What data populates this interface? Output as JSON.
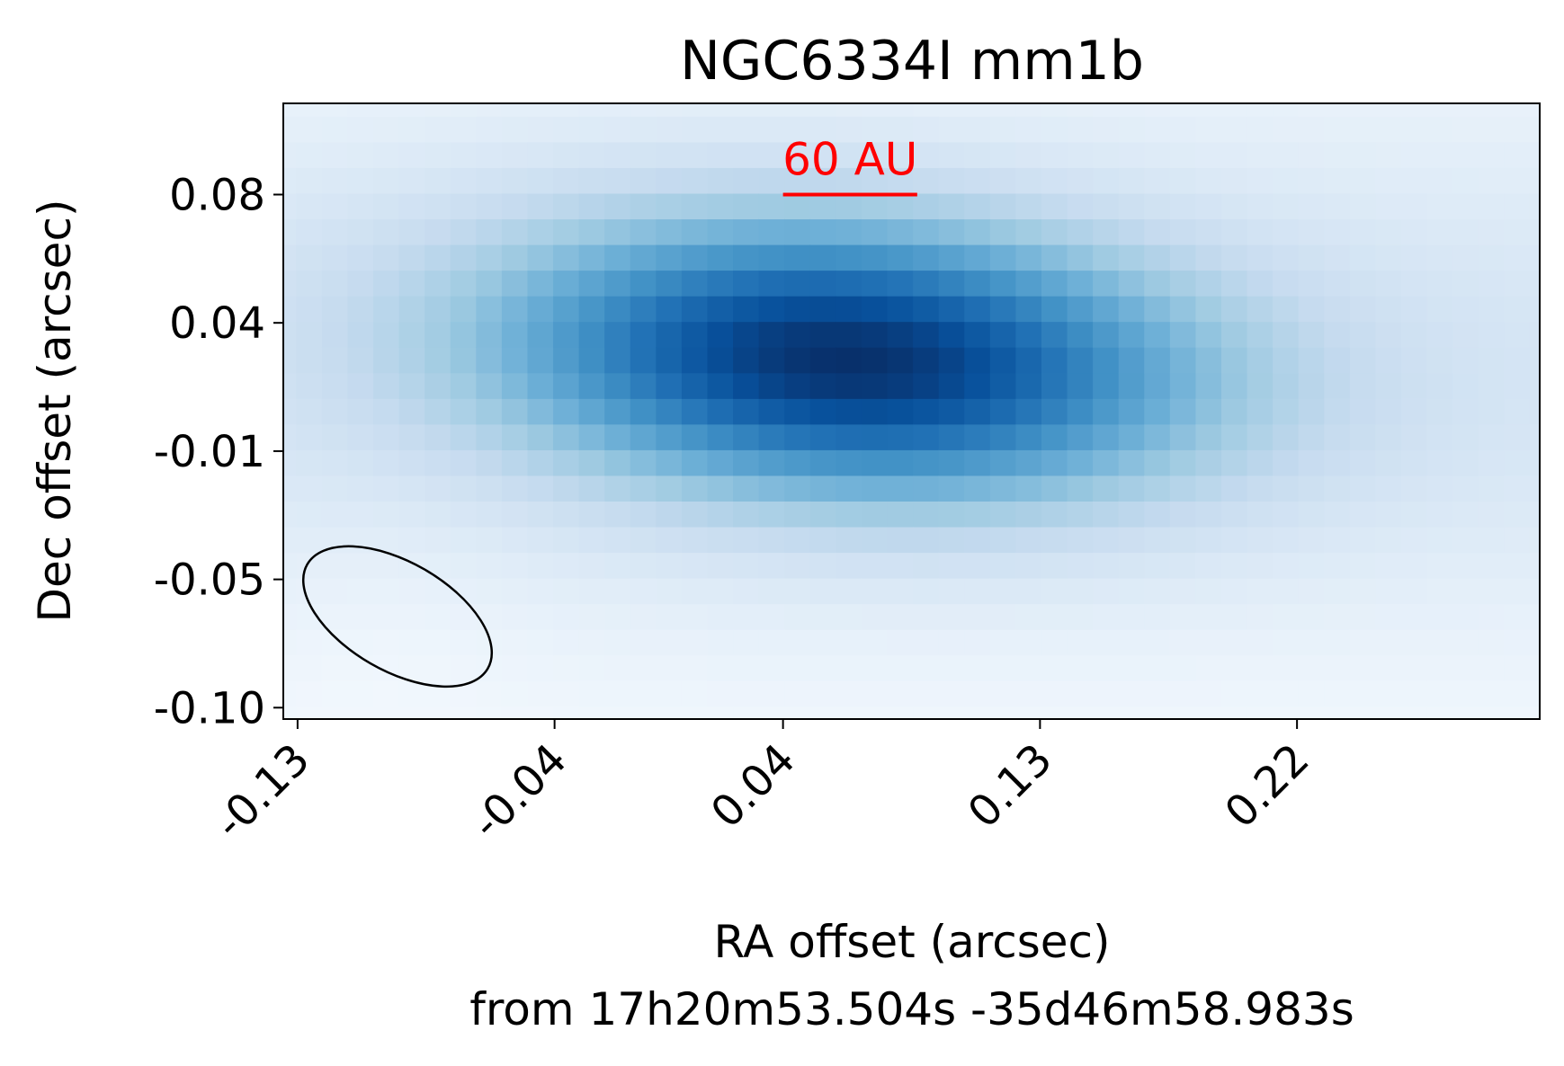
{
  "chart_data": {
    "type": "heatmap",
    "title": "NGC6334I mm1b",
    "xlabel_line1": "RA offset (arcsec)",
    "xlabel_line2": "from 17h20m53.504s -35d46m58.983s",
    "ylabel": "Dec offset (arcsec)",
    "xlim": [
      -0.135,
      0.305
    ],
    "ylim": [
      -0.104,
      0.112
    ],
    "x_ticks": [
      {
        "value": -0.13,
        "label": "-0.13"
      },
      {
        "value": -0.04,
        "label": "-0.04"
      },
      {
        "value": 0.04,
        "label": "0.04"
      },
      {
        "value": 0.13,
        "label": "0.13"
      },
      {
        "value": 0.22,
        "label": "0.22"
      }
    ],
    "y_ticks": [
      {
        "value": -0.1,
        "label": "-0.10"
      },
      {
        "value": -0.055,
        "label": "-0.05"
      },
      {
        "value": -0.01,
        "label": "-0.01"
      },
      {
        "value": 0.035,
        "label": "0.04"
      },
      {
        "value": 0.08,
        "label": "0.08"
      }
    ],
    "colormap": "Blues",
    "pixel_size_arcsec": 0.009,
    "emission": {
      "peak_x": 0.062,
      "peak_y": 0.0224,
      "sigma_major": 0.085,
      "sigma_minor": 0.034,
      "position_angle_deg": -4
    },
    "scale_bar": {
      "label": "60 AU",
      "x_start": 0.04,
      "x_end": 0.087,
      "y": 0.08,
      "color": "#ff0000"
    },
    "beam": {
      "center_x": -0.095,
      "center_y": -0.068,
      "major": 0.073,
      "minor": 0.038,
      "angle_deg": -30,
      "color": "#000000"
    }
  }
}
